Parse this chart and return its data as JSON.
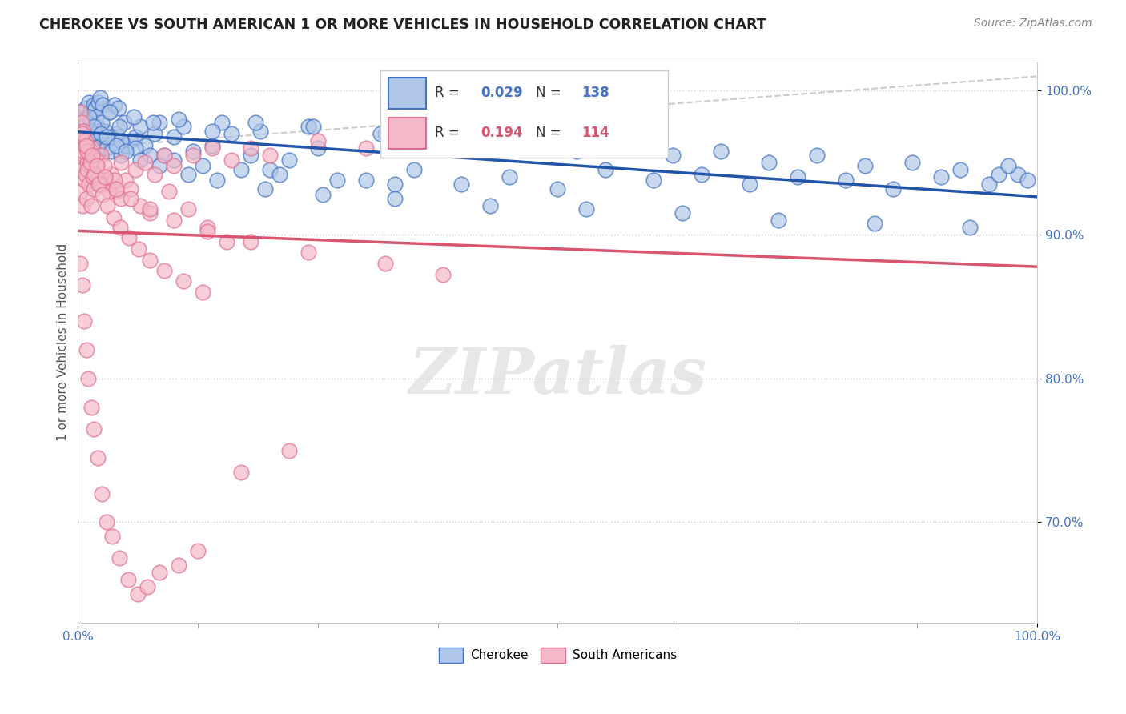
{
  "title": "CHEROKEE VS SOUTH AMERICAN 1 OR MORE VEHICLES IN HOUSEHOLD CORRELATION CHART",
  "source": "Source: ZipAtlas.com",
  "ylabel": "1 or more Vehicles in Household",
  "x_range": [
    0.0,
    100.0
  ],
  "y_range": [
    63.0,
    102.0
  ],
  "cherokee_R": 0.029,
  "cherokee_N": 138,
  "south_american_R": 0.194,
  "south_american_N": 114,
  "cherokee_color": "#aec6e8",
  "cherokee_edge": "#4472c4",
  "cherokee_line_color": "#2255aa",
  "south_american_color": "#f4b8c8",
  "south_american_edge": "#e07090",
  "south_american_line_color": "#d9546e",
  "watermark": "ZIPatlas",
  "background": "#ffffff",
  "legend_R_color_cherokee": "#4472c4",
  "south_american_line_color2": "#d9546e",
  "cherokee_x": [
    0.2,
    0.4,
    0.5,
    0.7,
    0.9,
    1.0,
    1.2,
    1.4,
    1.5,
    1.7,
    1.9,
    2.0,
    2.2,
    2.5,
    2.8,
    3.0,
    3.5,
    4.0,
    4.5,
    5.0,
    5.5,
    6.0,
    7.0,
    8.0,
    9.0,
    10.0,
    12.0,
    14.0,
    16.0,
    18.0,
    20.0,
    22.0,
    25.0,
    30.0,
    35.0,
    40.0,
    45.0,
    50.0,
    55.0,
    60.0,
    65.0,
    70.0,
    75.0,
    80.0,
    85.0,
    90.0,
    95.0,
    98.0,
    0.3,
    0.6,
    0.8,
    1.1,
    1.3,
    1.6,
    1.8,
    2.1,
    2.3,
    2.6,
    3.2,
    3.8,
    4.2,
    4.8,
    6.5,
    8.5,
    11.0,
    15.0,
    19.0,
    24.0,
    32.0,
    42.0,
    52.0,
    62.0,
    72.0,
    82.0,
    92.0,
    96.0,
    99.0,
    0.5,
    1.0,
    1.5,
    2.0,
    2.8,
    3.5,
    4.5,
    6.0,
    7.5,
    10.0,
    13.0,
    17.0,
    21.0,
    27.0,
    33.0,
    0.3,
    0.7,
    1.2,
    1.9,
    2.5,
    3.3,
    4.3,
    5.8,
    7.8,
    10.5,
    14.0,
    18.5,
    24.5,
    31.5,
    38.5,
    47.0,
    57.0,
    67.0,
    77.0,
    87.0,
    97.0,
    0.4,
    0.9,
    1.1,
    1.6,
    2.4,
    3.0,
    4.0,
    5.0,
    6.5,
    8.5,
    11.5,
    14.5,
    19.5,
    25.5,
    33.0,
    43.0,
    53.0,
    63.0,
    73.0,
    83.0,
    93.0
  ],
  "cherokee_y": [
    97.5,
    97.8,
    98.0,
    96.5,
    97.6,
    96.2,
    96.8,
    97.5,
    96.0,
    96.5,
    96.8,
    97.2,
    95.8,
    96.5,
    96.8,
    96.0,
    95.8,
    97.0,
    95.5,
    96.2,
    96.5,
    96.8,
    96.2,
    97.0,
    95.5,
    96.8,
    95.8,
    96.2,
    97.0,
    95.5,
    94.5,
    95.2,
    96.0,
    93.8,
    94.5,
    93.5,
    94.0,
    93.2,
    94.5,
    93.8,
    94.2,
    93.5,
    94.0,
    93.8,
    93.2,
    94.0,
    93.5,
    94.2,
    98.5,
    97.0,
    98.8,
    99.2,
    98.5,
    99.0,
    98.8,
    99.2,
    99.5,
    99.0,
    98.5,
    99.0,
    98.8,
    97.8,
    97.5,
    97.8,
    97.5,
    97.8,
    97.2,
    97.5,
    97.0,
    96.2,
    95.8,
    95.5,
    95.0,
    94.8,
    94.5,
    94.2,
    93.8,
    97.2,
    97.8,
    97.0,
    97.5,
    97.2,
    96.8,
    96.5,
    96.0,
    95.5,
    95.2,
    94.8,
    94.5,
    94.2,
    93.8,
    93.5,
    97.5,
    98.0,
    97.5,
    98.2,
    97.8,
    98.5,
    97.5,
    98.2,
    97.8,
    98.0,
    97.2,
    97.8,
    97.5,
    97.0,
    96.8,
    96.5,
    96.2,
    95.8,
    95.5,
    95.0,
    94.8,
    97.2,
    97.8,
    98.2,
    97.5,
    97.0,
    96.8,
    96.2,
    95.8,
    95.2,
    94.8,
    94.2,
    93.8,
    93.2,
    92.8,
    92.5,
    92.0,
    91.8,
    91.5,
    91.0,
    90.8,
    90.5
  ],
  "sa_x": [
    0.1,
    0.2,
    0.3,
    0.4,
    0.5,
    0.6,
    0.7,
    0.8,
    0.9,
    1.0,
    1.1,
    1.2,
    1.4,
    1.5,
    1.6,
    1.8,
    2.0,
    2.2,
    2.4,
    2.8,
    3.0,
    3.5,
    4.0,
    4.5,
    5.0,
    6.0,
    7.0,
    8.0,
    9.0,
    10.0,
    12.0,
    14.0,
    16.0,
    18.0,
    20.0,
    25.0,
    30.0,
    35.0,
    40.0,
    45.0,
    0.15,
    0.35,
    0.55,
    0.75,
    0.95,
    1.25,
    1.55,
    1.9,
    2.3,
    2.7,
    3.2,
    3.8,
    4.5,
    5.5,
    6.5,
    7.5,
    9.5,
    11.5,
    13.5,
    15.5,
    0.25,
    0.45,
    0.65,
    0.85,
    1.05,
    1.35,
    1.65,
    2.05,
    2.5,
    3.0,
    3.6,
    4.3,
    5.2,
    6.2,
    7.2,
    8.5,
    10.5,
    12.5,
    17.0,
    22.0,
    0.18,
    0.38,
    0.58,
    0.78,
    1.0,
    1.3,
    1.7,
    2.1,
    2.6,
    3.1,
    3.7,
    4.4,
    5.3,
    6.3,
    7.5,
    9.0,
    11.0,
    13.0,
    0.5,
    0.9,
    1.5,
    2.0,
    2.8,
    4.0,
    5.5,
    7.5,
    10.0,
    13.5,
    18.0,
    24.0,
    32.0,
    38.0
  ],
  "sa_y": [
    96.5,
    95.0,
    93.0,
    94.5,
    92.0,
    95.5,
    93.8,
    94.2,
    92.5,
    95.0,
    93.5,
    94.8,
    92.0,
    96.0,
    93.2,
    94.5,
    95.2,
    93.8,
    95.5,
    94.0,
    93.5,
    94.2,
    93.0,
    95.0,
    93.8,
    94.5,
    95.0,
    94.2,
    95.5,
    94.8,
    95.5,
    96.0,
    95.2,
    96.0,
    95.5,
    96.5,
    96.0,
    97.0,
    96.5,
    97.2,
    97.0,
    96.5,
    95.8,
    96.2,
    94.5,
    95.5,
    94.0,
    95.2,
    93.5,
    94.8,
    93.0,
    93.8,
    92.5,
    93.2,
    92.0,
    91.5,
    93.0,
    91.8,
    90.5,
    89.5,
    88.0,
    86.5,
    84.0,
    82.0,
    80.0,
    78.0,
    76.5,
    74.5,
    72.0,
    70.0,
    69.0,
    67.5,
    66.0,
    65.0,
    65.5,
    66.5,
    67.0,
    68.0,
    73.5,
    75.0,
    98.5,
    97.8,
    97.2,
    96.5,
    95.8,
    95.0,
    94.2,
    93.5,
    92.8,
    92.0,
    91.2,
    90.5,
    89.8,
    89.0,
    88.2,
    87.5,
    86.8,
    86.0,
    97.0,
    96.2,
    95.5,
    94.8,
    94.0,
    93.2,
    92.5,
    91.8,
    91.0,
    90.2,
    89.5,
    88.8,
    88.0,
    87.2
  ]
}
